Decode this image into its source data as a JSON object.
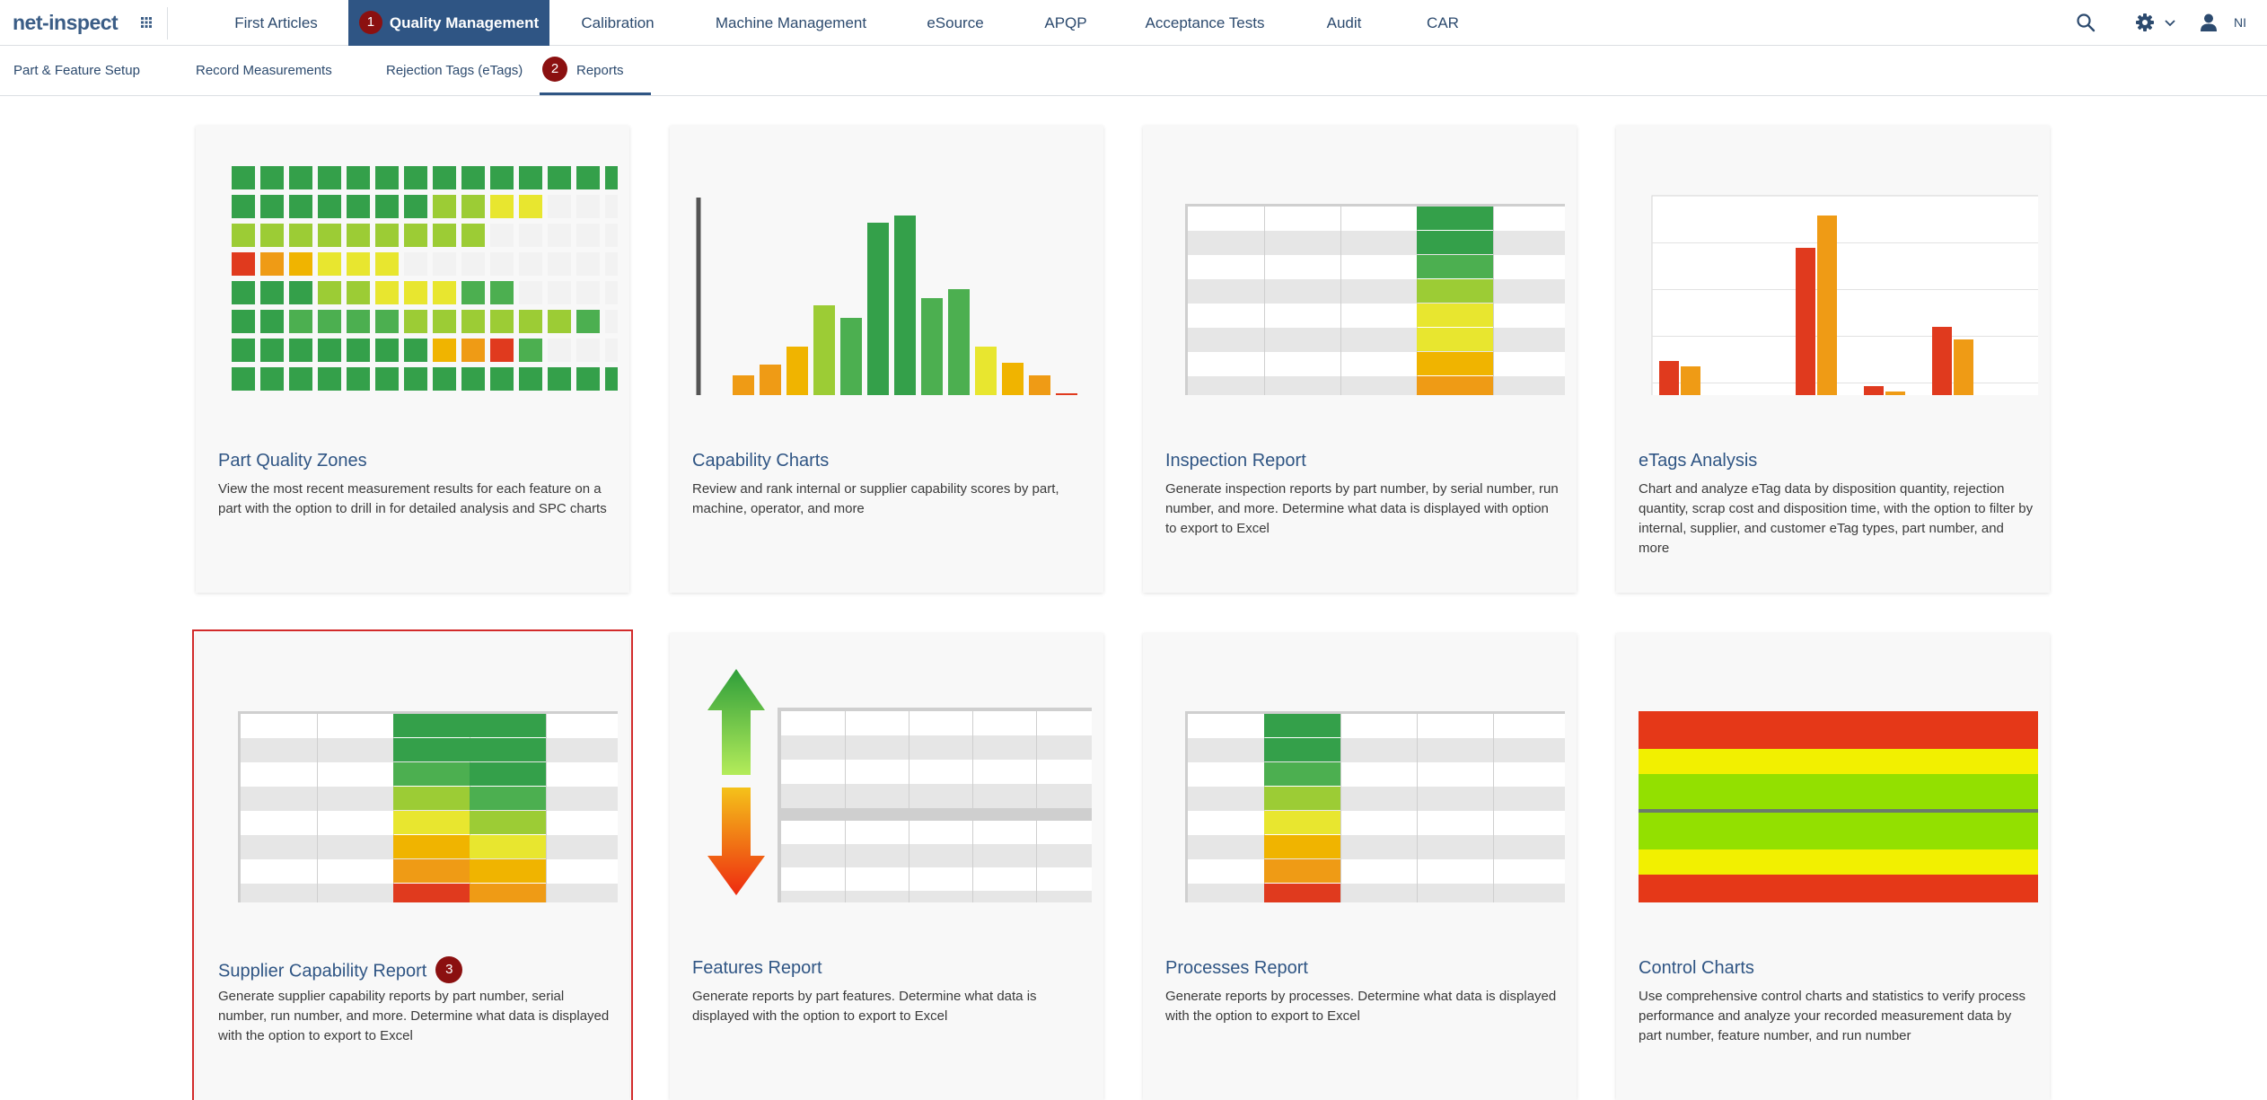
{
  "app": {
    "logo_text": "net-inspect",
    "user_initials": "NI"
  },
  "topnav": {
    "items": [
      {
        "label": "First Articles"
      },
      {
        "label": "Quality Management",
        "badge": "1"
      },
      {
        "label": "Calibration"
      },
      {
        "label": "Machine Management"
      },
      {
        "label": "eSource"
      },
      {
        "label": "APQP"
      },
      {
        "label": "Acceptance Tests"
      },
      {
        "label": "Audit"
      },
      {
        "label": "CAR"
      }
    ],
    "icons": [
      "search-icon",
      "gear-icon",
      "chevron-down-icon",
      "user-icon"
    ]
  },
  "subnav": {
    "items": [
      {
        "label": "Part & Feature Setup"
      },
      {
        "label": "Record Measurements"
      },
      {
        "label": "Rejection Tags (eTags)"
      },
      {
        "label": "Reports",
        "badge": "2"
      }
    ]
  },
  "cards": [
    {
      "title": "Part Quality Zones",
      "description": "View the most recent measurement results for each feature on a part with the option to drill in for detailed analysis and SPC charts"
    },
    {
      "title": "Capability Charts",
      "description": "Review and rank internal or supplier capability scores by part, machine, operator, and more"
    },
    {
      "title": "Inspection Report",
      "description": "Generate inspection reports by part number, by serial number, run number, and more. Determine what data is displayed with option to export to Excel"
    },
    {
      "title": "eTags Analysis",
      "description": "Chart and analyze eTag data by disposition quantity, rejection quantity, scrap cost and disposition time, with the option to filter by internal, supplier, and customer eTag types, part number, and more"
    },
    {
      "title": "Supplier Capability Report",
      "badge": "3",
      "description": "Generate supplier capability reports by part number, serial number, run number, and more. Determine what data is displayed with the option to export to Excel"
    },
    {
      "title": "Features Report",
      "description": "Generate reports by part features. Determine what data is displayed with the option to export to Excel"
    },
    {
      "title": "Processes Report",
      "description": "Generate reports by processes. Determine what data is displayed with the option to export to Excel"
    },
    {
      "title": "Control Charts",
      "description": "Use comprehensive control charts and statistics to verify process performance and analyze your recorded measurement data by part number, feature number, and run number"
    }
  ],
  "colors": {
    "brand": "#2f5584",
    "badge": "#8b1010",
    "highlight": "#d22b2b",
    "dark_green": "#34a04a",
    "green": "#4caf50",
    "lime": "#9ccc35",
    "yellow": "#e8e62f",
    "amber": "#f0b400",
    "orange": "#ef9b15",
    "red": "#e03a1e",
    "empty": "#f2f2f2"
  }
}
